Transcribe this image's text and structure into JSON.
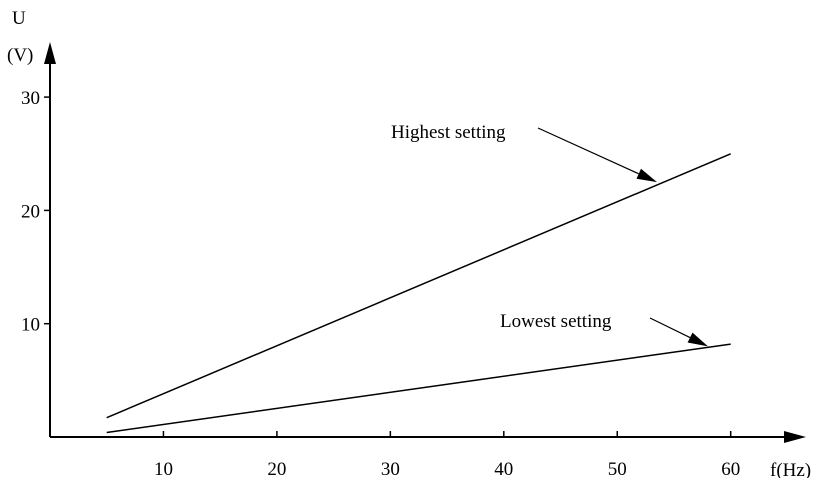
{
  "chart_data": {
    "type": "line",
    "title": "",
    "xlabel": "f(Hz)",
    "ylabel_line1": "U",
    "ylabel_line2": "(V)",
    "xlim": [
      0,
      65
    ],
    "ylim": [
      0,
      33
    ],
    "x_ticks": [
      10,
      20,
      30,
      40,
      50,
      60
    ],
    "y_ticks": [
      10,
      20,
      30
    ],
    "grid": false,
    "series": [
      {
        "name": "Highest setting",
        "x": [
          5,
          60
        ],
        "y": [
          1.7,
          25
        ]
      },
      {
        "name": "Lowest setting",
        "x": [
          5,
          60
        ],
        "y": [
          0.4,
          8.2
        ]
      }
    ],
    "annotations": [
      {
        "text": "Highest setting",
        "points_to": [
          53.5,
          22.5
        ]
      },
      {
        "text": "Lowest setting",
        "points_to": [
          58,
          8
        ]
      }
    ]
  }
}
